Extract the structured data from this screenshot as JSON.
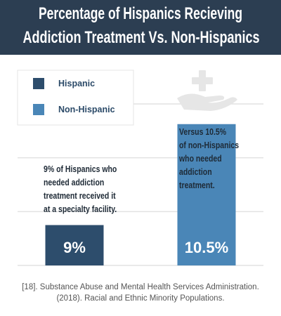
{
  "chart_data": {
    "type": "bar",
    "title": [
      "Percentage of Hispanics Recieving",
      "Addiction Treatment Vs. Non-Hispanics"
    ],
    "categories": [
      "Hispanic",
      "Non-Hispanic"
    ],
    "values": [
      9,
      10.5
    ],
    "value_labels": [
      "9%",
      "10.5%"
    ],
    "colors": [
      "#2d4d6c",
      "#4a86b7"
    ],
    "ylim": [
      8.4,
      10.8
    ],
    "grid": true,
    "annotations": [
      [
        "9% of Hispanics who",
        "needed addiction",
        "treatment received it",
        "at a specialty facility."
      ],
      [
        "Versus 10.5%",
        "of non-Hispanics",
        "who needed",
        "addiction",
        "treatment."
      ]
    ],
    "source": [
      "[18]. Substance Abuse and Mental Health Services Administration.",
      "(2018). Racial and Ethnic Minority Populations."
    ]
  }
}
